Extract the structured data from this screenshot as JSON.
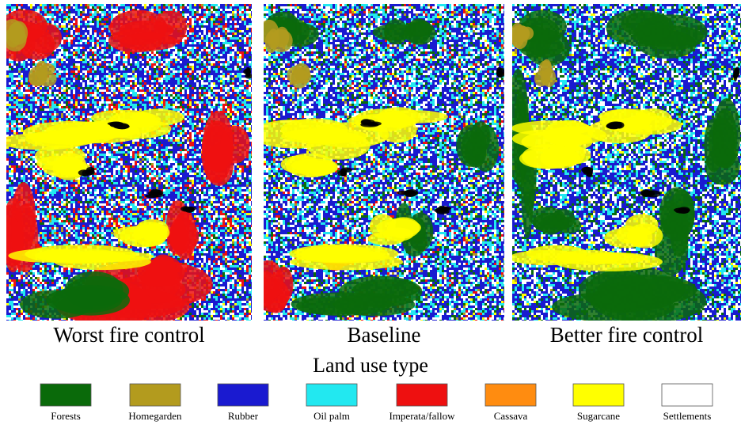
{
  "panels": [
    {
      "caption": "Worst fire control"
    },
    {
      "caption": "Baseline"
    },
    {
      "caption": "Better fire control"
    }
  ],
  "legend": {
    "title": "Land use type",
    "items": [
      {
        "label": "Forests",
        "color": "#0a6a0a"
      },
      {
        "label": "Homegarden",
        "color": "#b39b1e"
      },
      {
        "label": "Rubber",
        "color": "#1a1ad0"
      },
      {
        "label": "Oil palm",
        "color": "#22e8f0"
      },
      {
        "label": "Imperata/fallow",
        "color": "#ee1010"
      },
      {
        "label": "Cassava",
        "color": "#ff8c10"
      },
      {
        "label": "Sugarcane",
        "color": "#ffff00"
      },
      {
        "label": "Settlements",
        "color": "#ffffff"
      }
    ]
  }
}
